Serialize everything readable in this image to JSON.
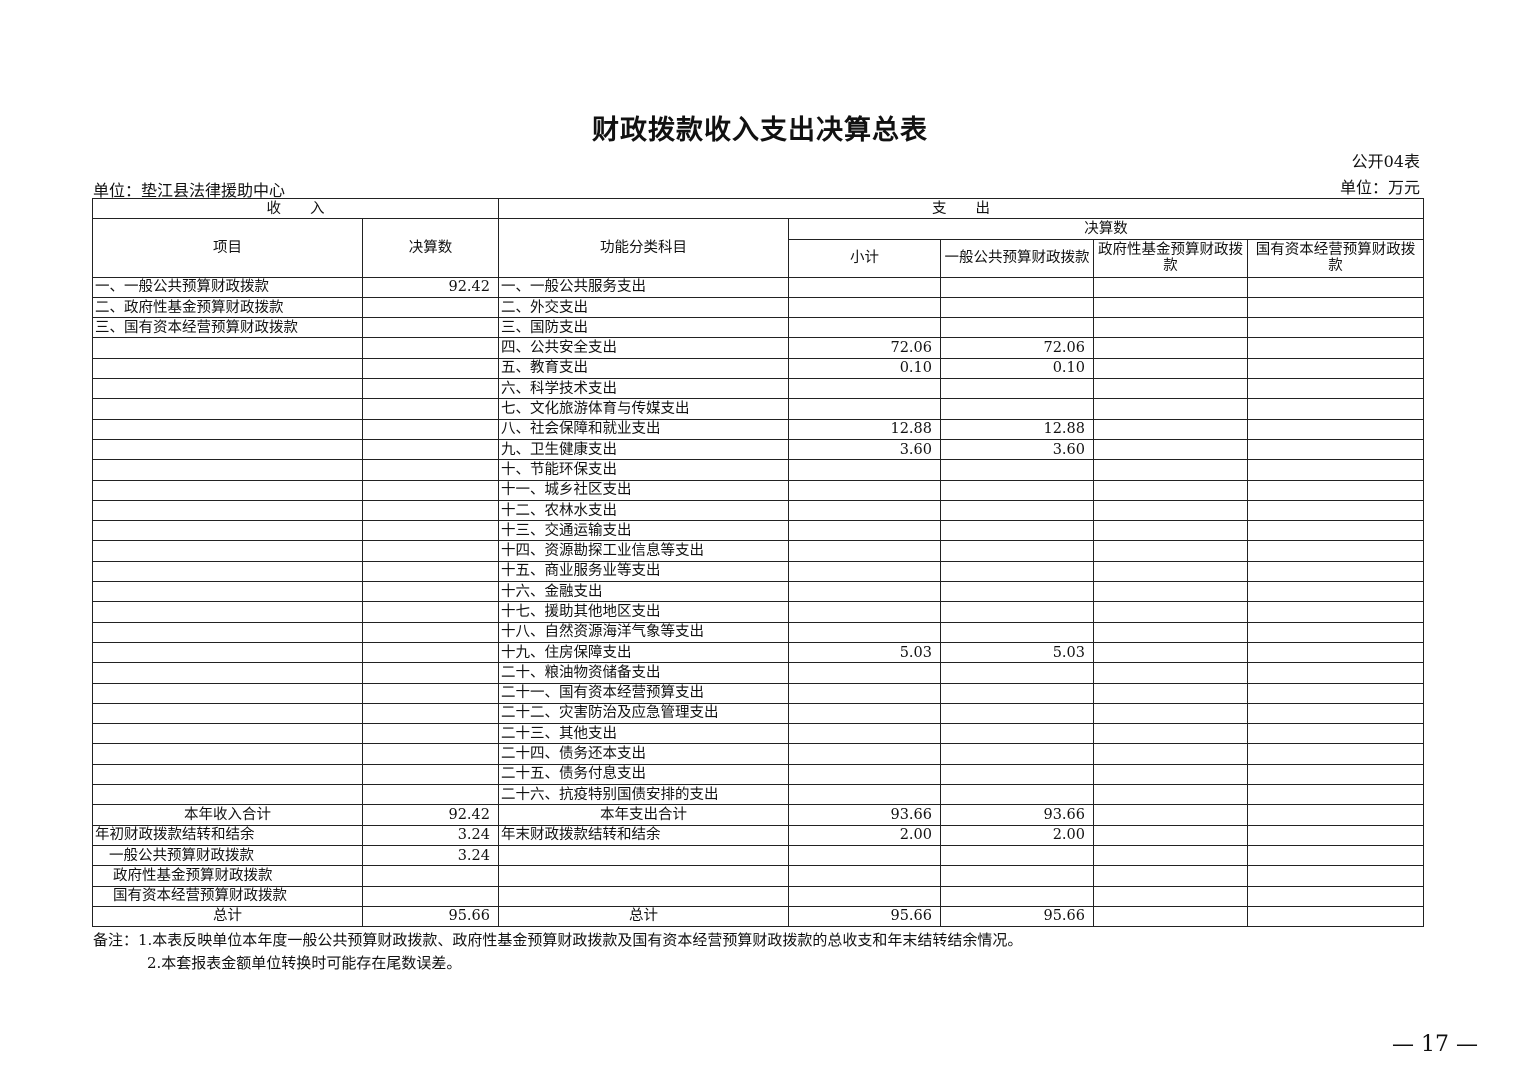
{
  "title": "财政拨款收入支出决算总表",
  "table_no": "公开04表",
  "unit_left": "单位：垫江县法律援助中心",
  "unit_right": "单位：万元",
  "header": {
    "income": "收　　入",
    "expense": "支　　出",
    "item": "项目",
    "amount": "决算数",
    "func_class": "功能分类科目",
    "final_amount": "决算数",
    "subtotal": "小计",
    "general": "一般公共预算财政拨款",
    "gov_fund": "政府性基金预算财政拨款",
    "state_capital": "国有资本经营预算财政拨款"
  },
  "rows": [
    [
      "一、一般公共预算财政拨款",
      "92.42",
      "一、一般公共服务支出",
      "",
      "",
      "",
      ""
    ],
    [
      "二、政府性基金预算财政拨款",
      "",
      "二、外交支出",
      "",
      "",
      "",
      ""
    ],
    [
      "三、国有资本经营预算财政拨款",
      "",
      "三、国防支出",
      "",
      "",
      "",
      ""
    ],
    [
      "",
      "",
      "四、公共安全支出",
      "72.06",
      "72.06",
      "",
      ""
    ],
    [
      "",
      "",
      "五、教育支出",
      "0.10",
      "0.10",
      "",
      ""
    ],
    [
      "",
      "",
      "六、科学技术支出",
      "",
      "",
      "",
      ""
    ],
    [
      "",
      "",
      "七、文化旅游体育与传媒支出",
      "",
      "",
      "",
      ""
    ],
    [
      "",
      "",
      "八、社会保障和就业支出",
      "12.88",
      "12.88",
      "",
      ""
    ],
    [
      "",
      "",
      "九、卫生健康支出",
      "3.60",
      "3.60",
      "",
      ""
    ],
    [
      "",
      "",
      "十、节能环保支出",
      "",
      "",
      "",
      ""
    ],
    [
      "",
      "",
      "十一、城乡社区支出",
      "",
      "",
      "",
      ""
    ],
    [
      "",
      "",
      "十二、农林水支出",
      "",
      "",
      "",
      ""
    ],
    [
      "",
      "",
      "十三、交通运输支出",
      "",
      "",
      "",
      ""
    ],
    [
      "",
      "",
      "十四、资源勘探工业信息等支出",
      "",
      "",
      "",
      ""
    ],
    [
      "",
      "",
      "十五、商业服务业等支出",
      "",
      "",
      "",
      ""
    ],
    [
      "",
      "",
      "十六、金融支出",
      "",
      "",
      "",
      ""
    ],
    [
      "",
      "",
      "十七、援助其他地区支出",
      "",
      "",
      "",
      ""
    ],
    [
      "",
      "",
      "十八、自然资源海洋气象等支出",
      "",
      "",
      "",
      ""
    ],
    [
      "",
      "",
      "十九、住房保障支出",
      "5.03",
      "5.03",
      "",
      ""
    ],
    [
      "",
      "",
      "二十、粮油物资储备支出",
      "",
      "",
      "",
      ""
    ],
    [
      "",
      "",
      "二十一、国有资本经营预算支出",
      "",
      "",
      "",
      ""
    ],
    [
      "",
      "",
      "二十二、灾害防治及应急管理支出",
      "",
      "",
      "",
      ""
    ],
    [
      "",
      "",
      "二十三、其他支出",
      "",
      "",
      "",
      ""
    ],
    [
      "",
      "",
      "二十四、债务还本支出",
      "",
      "",
      "",
      ""
    ],
    [
      "",
      "",
      "二十五、债务付息支出",
      "",
      "",
      "",
      ""
    ],
    [
      "",
      "",
      "二十六、抗疫特别国债安排的支出",
      "",
      "",
      "",
      ""
    ],
    [
      "本年收入合计",
      "92.42",
      "本年支出合计",
      "93.66",
      "93.66",
      "",
      ""
    ],
    [
      "年初财政拨款结转和结余",
      "3.24",
      "年末财政拨款结转和结余",
      "2.00",
      "2.00",
      "",
      ""
    ],
    [
      "一般公共预算财政拨款",
      "3.24",
      "",
      "",
      "",
      "",
      ""
    ],
    [
      "政府性基金预算财政拨款",
      "",
      "",
      "",
      "",
      "",
      ""
    ],
    [
      "国有资本经营预算财政拨款",
      "",
      "",
      "",
      "",
      "",
      ""
    ],
    [
      "总计",
      "95.66",
      "总计",
      "95.66",
      "95.66",
      "",
      ""
    ]
  ],
  "notes": [
    "备注：1.本表反映单位本年度一般公共预算财政拨款、政府性基金预算财政拨款及国有资本经营预算财政拨款的总收支和年末结转结余情况。",
    "2.本套报表金额单位转换时可能存在尾数误差。"
  ],
  "page_number": "— 17 —"
}
